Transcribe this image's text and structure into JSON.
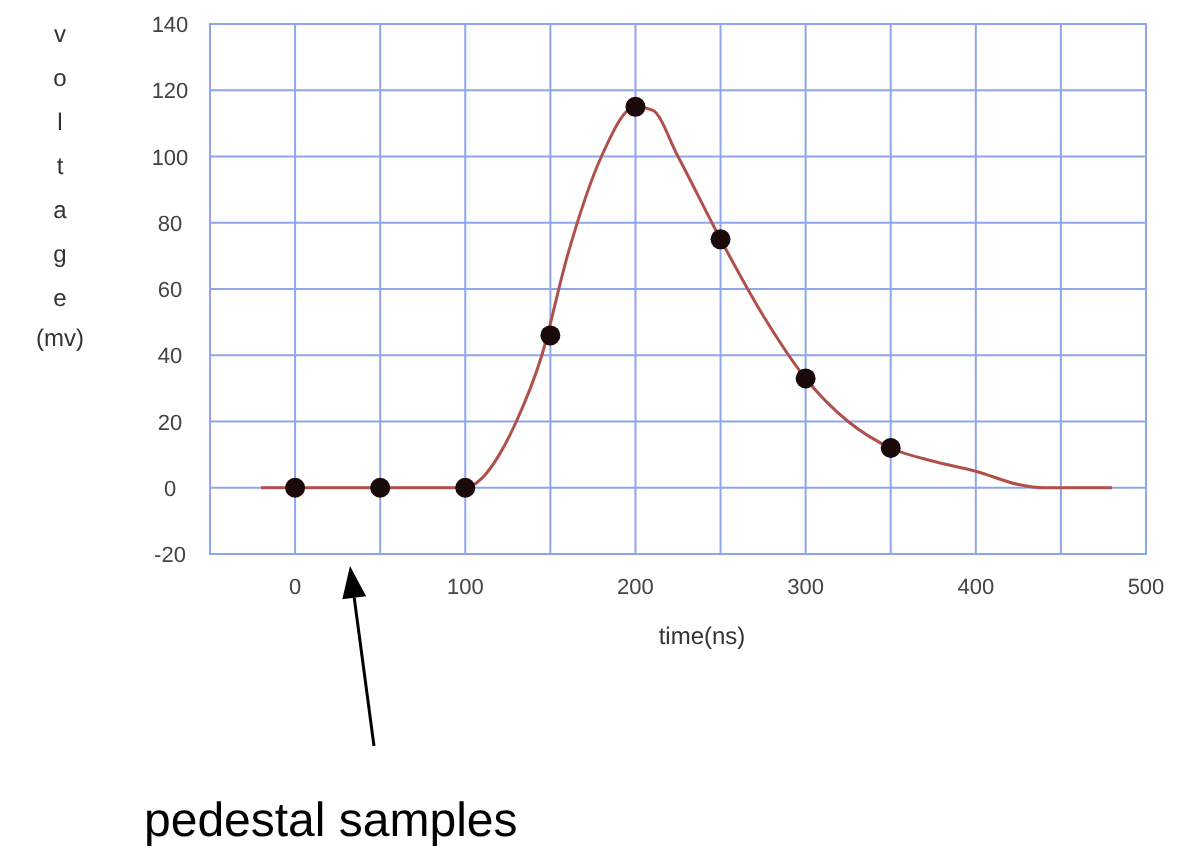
{
  "chart_data": {
    "type": "line",
    "xlabel": "time(ns)",
    "ylabel": "voltage (mv)",
    "xlim": [
      -50,
      500
    ],
    "ylim": [
      -20,
      140
    ],
    "xticks": [
      0,
      {
        "value": 50,
        "label": null
      },
      100,
      {
        "value": 150,
        "label": null
      },
      200,
      {
        "value": 250,
        "label": null
      },
      300,
      {
        "value": 350,
        "label": null
      },
      400,
      {
        "value": 450,
        "label": null
      },
      500
    ],
    "yticks": [
      -20,
      0,
      20,
      40,
      60,
      80,
      100,
      120,
      140
    ],
    "grid": true,
    "series": [
      {
        "color": "#b0504a",
        "x": [
          -20,
          100,
          110,
          120,
          130,
          145,
          160,
          180,
          200,
          210,
          225,
          250,
          275,
          300,
          325,
          350,
          375,
          400,
          425,
          440,
          480
        ],
        "values": [
          0,
          0,
          3,
          10,
          20,
          40,
          70,
          100,
          115,
          114,
          100,
          75,
          52,
          33,
          20,
          12,
          8,
          5,
          1,
          0,
          0
        ]
      },
      {
        "type": "scatter",
        "color": "#1a0a0a",
        "marker": "circle",
        "x": [
          0,
          50,
          100,
          150,
          200,
          250,
          300,
          350
        ],
        "values": [
          0,
          0,
          0,
          46,
          115,
          75,
          33,
          12
        ]
      }
    ],
    "annotations": [
      "pedestal samples"
    ]
  }
}
